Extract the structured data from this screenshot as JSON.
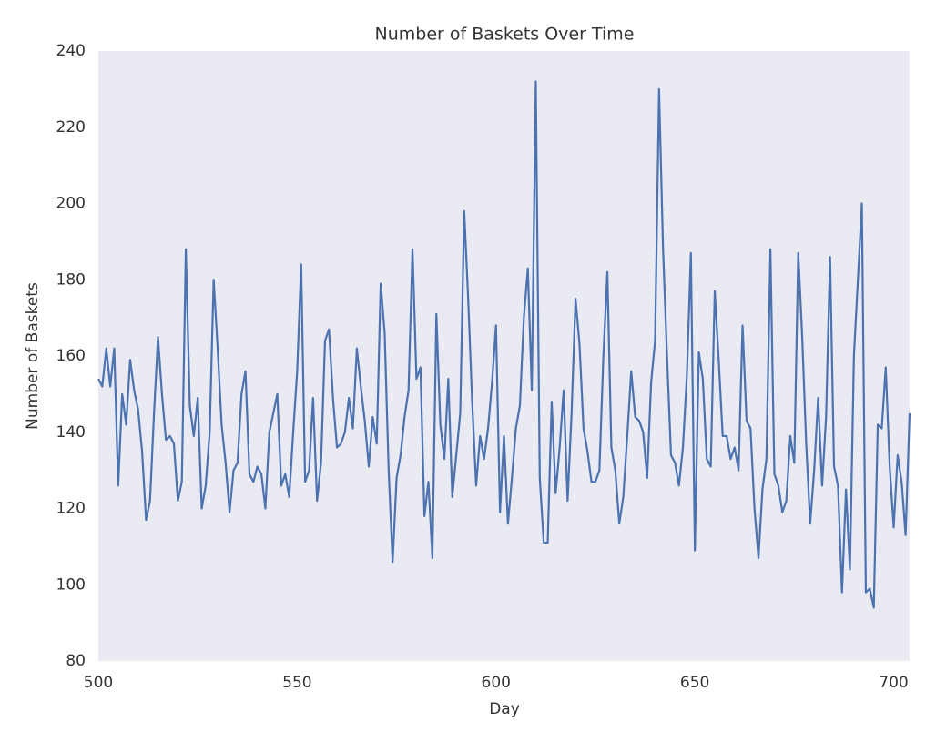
{
  "chart_data": {
    "type": "line",
    "title": "Number of Baskets Over Time",
    "x_label": "Day",
    "y_label": "Number of Baskets",
    "x": [
      500,
      501,
      502,
      503,
      504,
      505,
      506,
      507,
      508,
      509,
      510,
      511,
      512,
      513,
      514,
      515,
      516,
      517,
      518,
      519,
      520,
      521,
      522,
      523,
      524,
      525,
      526,
      527,
      528,
      529,
      530,
      531,
      532,
      533,
      534,
      535,
      536,
      537,
      538,
      539,
      540,
      541,
      542,
      543,
      544,
      545,
      546,
      547,
      548,
      549,
      550,
      551,
      552,
      553,
      554,
      555,
      556,
      557,
      558,
      559,
      560,
      561,
      562,
      563,
      564,
      565,
      566,
      567,
      568,
      569,
      570,
      571,
      572,
      573,
      574,
      575,
      576,
      577,
      578,
      579,
      580,
      581,
      582,
      583,
      584,
      585,
      586,
      587,
      588,
      589,
      590,
      591,
      592,
      593,
      594,
      595,
      596,
      597,
      598,
      599,
      600,
      601,
      602,
      603,
      604,
      605,
      606,
      607,
      608,
      609,
      610,
      611,
      612,
      613,
      614,
      615,
      616,
      617,
      618,
      619,
      620,
      621,
      622,
      623,
      624,
      625,
      626,
      627,
      628,
      629,
      630,
      631,
      632,
      633,
      634,
      635,
      636,
      637,
      638,
      639,
      640,
      641,
      642,
      643,
      644,
      645,
      646,
      647,
      648,
      649,
      650,
      651,
      652,
      653,
      654,
      655,
      656,
      657,
      658,
      659,
      660,
      661,
      662,
      663,
      664,
      665,
      666,
      667,
      668,
      669,
      670,
      671,
      672,
      673,
      674,
      675,
      676,
      677,
      678,
      679,
      680,
      681,
      682,
      683,
      684,
      685,
      686,
      687,
      688,
      689,
      690,
      691,
      692,
      693,
      694,
      695,
      696,
      697,
      698,
      699,
      700,
      701,
      702,
      703,
      704
    ],
    "series": [
      {
        "name": "Baskets",
        "color": "#4c72b0",
        "values": [
          154,
          152,
          162,
          152,
          162,
          126,
          150,
          142,
          159,
          151,
          146,
          135,
          117,
          122,
          145,
          165,
          150,
          138,
          139,
          137,
          122,
          127,
          188,
          147,
          139,
          149,
          120,
          126,
          140,
          180,
          162,
          142,
          132,
          119,
          130,
          132,
          150,
          156,
          129,
          127,
          131,
          129,
          120,
          140,
          145,
          150,
          126,
          129,
          123,
          140,
          156,
          184,
          127,
          130,
          149,
          122,
          132,
          164,
          167,
          149,
          136,
          137,
          140,
          149,
          141,
          162,
          152,
          143,
          131,
          144,
          137,
          179,
          166,
          130,
          106,
          128,
          134,
          144,
          151,
          188,
          154,
          157,
          118,
          127,
          107,
          171,
          142,
          133,
          154,
          123,
          134,
          145,
          198,
          175,
          148,
          126,
          139,
          133,
          141,
          153,
          168,
          119,
          139,
          116,
          128,
          141,
          147,
          170,
          183,
          151,
          232,
          128,
          111,
          111,
          148,
          124,
          136,
          151,
          122,
          145,
          175,
          163,
          141,
          135,
          127,
          127,
          130,
          160,
          182,
          136,
          130,
          116,
          123,
          139,
          156,
          144,
          143,
          140,
          128,
          153,
          164,
          230,
          188,
          160,
          134,
          132,
          126,
          136,
          155,
          187,
          109,
          161,
          154,
          133,
          131,
          177,
          159,
          139,
          139,
          133,
          136,
          130,
          168,
          143,
          141,
          120,
          107,
          125,
          133,
          188,
          129,
          126,
          119,
          122,
          139,
          132,
          187,
          165,
          137,
          116,
          130,
          149,
          126,
          144,
          186,
          131,
          126,
          98,
          125,
          104,
          160,
          180,
          200,
          98,
          99,
          94,
          142,
          141,
          157,
          131,
          115,
          134,
          127,
          113,
          145
        ]
      }
    ],
    "xlim": [
      500,
      704
    ],
    "ylim": [
      80,
      240
    ],
    "xticks": [
      500,
      550,
      600,
      650,
      700
    ],
    "yticks": [
      80,
      100,
      120,
      140,
      160,
      180,
      200,
      220,
      240
    ],
    "background": "#eaeaf2"
  }
}
